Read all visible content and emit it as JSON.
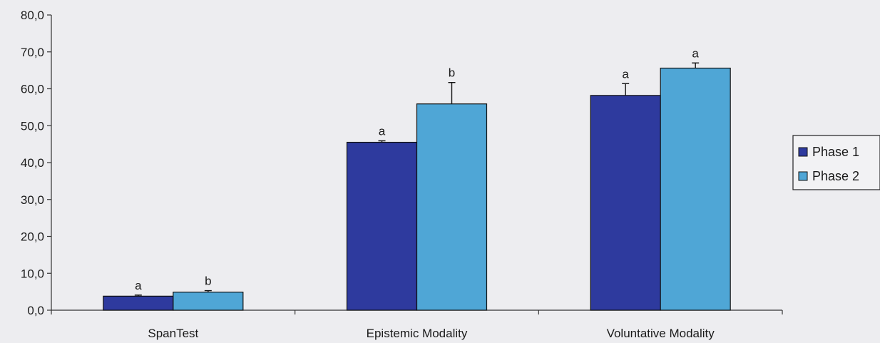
{
  "chart_data": {
    "type": "bar",
    "categories": [
      "SpanTest",
      "Epistemic Modality",
      "Voluntative Modality"
    ],
    "series": [
      {
        "name": "Phase 1",
        "color": "#2e3a9e",
        "values": [
          3.8,
          45.5,
          58.2
        ],
        "error": [
          0.3,
          0.4,
          3.2
        ],
        "labels": [
          "a",
          "a",
          "a"
        ]
      },
      {
        "name": "Phase 2",
        "color": "#4fa6d6",
        "values": [
          4.9,
          55.9,
          65.6
        ],
        "error": [
          0.4,
          5.8,
          1.4
        ],
        "labels": [
          "b",
          "b",
          "a"
        ]
      }
    ],
    "ylim": [
      0,
      80
    ],
    "yticks": [
      "0,0",
      "10,0",
      "20,0",
      "30,0",
      "40,0",
      "50,0",
      "60,0",
      "70,0",
      "80,0"
    ],
    "ytick_values": [
      0,
      10,
      20,
      30,
      40,
      50,
      60,
      70,
      80
    ],
    "legend_position": "right",
    "grid": false,
    "title": "",
    "xlabel": "",
    "ylabel": ""
  }
}
